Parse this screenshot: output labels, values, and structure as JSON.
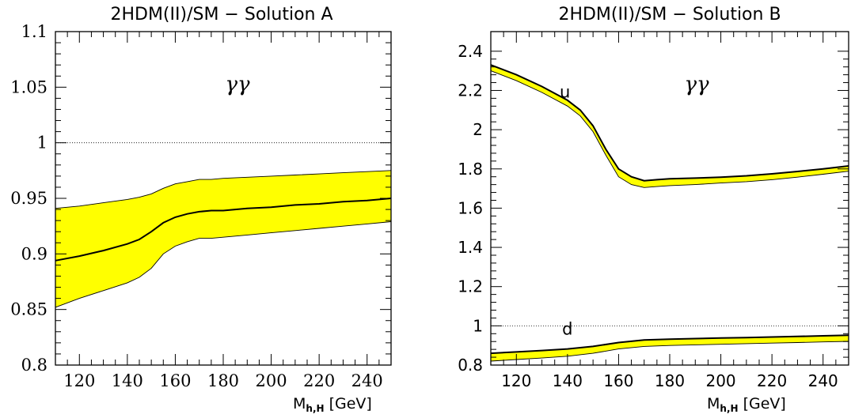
{
  "chart_data": [
    {
      "type": "line",
      "title": "2HDM(II)/SM − Solution A",
      "xlabel": "M",
      "xlabel_sub": "h,H",
      "xlabel_unit": "[GeV]",
      "ylabel": "",
      "annotation": "γγ",
      "xlim": [
        110,
        250
      ],
      "ylim": [
        0.8,
        1.1
      ],
      "xticks": [
        120,
        140,
        160,
        180,
        200,
        220,
        240
      ],
      "yticks": [
        0.8,
        0.85,
        0.9,
        0.95,
        1.0,
        1.05,
        1.1
      ],
      "ytick_labels": [
        "0.8",
        "0.85",
        "0.9",
        "0.95",
        "1",
        "1.05",
        "1.1"
      ],
      "reference_line": 1.0,
      "band_color": "#ffff00",
      "x": [
        110,
        120,
        130,
        140,
        145,
        150,
        155,
        160,
        165,
        170,
        175,
        180,
        190,
        200,
        210,
        220,
        230,
        240,
        250
      ],
      "central": [
        0.894,
        0.898,
        0.903,
        0.909,
        0.913,
        0.92,
        0.928,
        0.933,
        0.936,
        0.938,
        0.939,
        0.939,
        0.941,
        0.942,
        0.944,
        0.945,
        0.947,
        0.948,
        0.95
      ],
      "upper": [
        0.941,
        0.943,
        0.946,
        0.949,
        0.951,
        0.954,
        0.959,
        0.963,
        0.965,
        0.967,
        0.967,
        0.968,
        0.969,
        0.97,
        0.971,
        0.972,
        0.973,
        0.974,
        0.975
      ],
      "lower": [
        0.852,
        0.86,
        0.867,
        0.874,
        0.879,
        0.887,
        0.9,
        0.907,
        0.911,
        0.914,
        0.914,
        0.915,
        0.917,
        0.919,
        0.921,
        0.923,
        0.925,
        0.927,
        0.929
      ]
    },
    {
      "type": "line",
      "title": "2HDM(II)/SM − Solution B",
      "xlabel": "M",
      "xlabel_sub": "h,H",
      "xlabel_unit": "[GeV]",
      "ylabel": "",
      "annotation": "γγ",
      "xlim": [
        110,
        250
      ],
      "ylim": [
        0.8,
        2.5
      ],
      "xticks": [
        120,
        140,
        160,
        180,
        200,
        220,
        240
      ],
      "yticks": [
        0.8,
        1.0,
        1.2,
        1.4,
        1.6,
        1.8,
        2.0,
        2.2,
        2.4
      ],
      "ytick_labels": [
        "0.8",
        "1",
        "1.2",
        "1.4",
        "1.6",
        "1.8",
        "2",
        "2.2",
        "2.4"
      ],
      "reference_line": 1.0,
      "band_color": "#ffff00",
      "series": [
        {
          "name": "u",
          "x": [
            110,
            120,
            130,
            140,
            145,
            150,
            155,
            160,
            165,
            170,
            175,
            180,
            190,
            200,
            210,
            220,
            230,
            240,
            250
          ],
          "upper": [
            2.33,
            2.28,
            2.22,
            2.15,
            2.1,
            2.02,
            1.9,
            1.8,
            1.76,
            1.74,
            1.745,
            1.75,
            1.753,
            1.758,
            1.765,
            1.775,
            1.787,
            1.8,
            1.815
          ],
          "lower": [
            2.3,
            2.25,
            2.19,
            2.12,
            2.07,
            1.99,
            1.87,
            1.76,
            1.72,
            1.705,
            1.71,
            1.715,
            1.72,
            1.728,
            1.735,
            1.745,
            1.758,
            1.773,
            1.788
          ],
          "label_at": [
            139,
            2.14
          ]
        },
        {
          "name": "d",
          "x": [
            110,
            120,
            130,
            140,
            150,
            160,
            170,
            180,
            190,
            200,
            210,
            220,
            230,
            240,
            250
          ],
          "upper": [
            0.86,
            0.867,
            0.874,
            0.882,
            0.895,
            0.915,
            0.928,
            0.932,
            0.935,
            0.938,
            0.94,
            0.943,
            0.946,
            0.949,
            0.952
          ],
          "lower": [
            0.82,
            0.828,
            0.836,
            0.845,
            0.86,
            0.882,
            0.895,
            0.9,
            0.903,
            0.906,
            0.909,
            0.912,
            0.915,
            0.918,
            0.921
          ],
          "label_at": [
            140,
            0.955
          ]
        }
      ]
    }
  ]
}
